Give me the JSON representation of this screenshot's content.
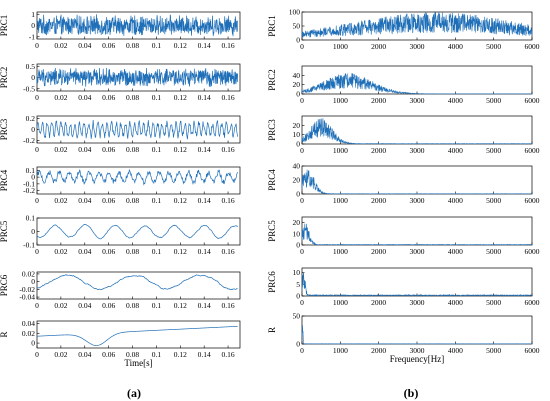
{
  "figure": {
    "panel_labels": [
      "(a)",
      "(b)"
    ],
    "line_color": "#1f6fb8"
  },
  "chart_data": [
    {
      "type": "line",
      "panel": "(a)",
      "xlabel": "Time[s]",
      "xlim": [
        0,
        0.17
      ],
      "xticks": [
        "0",
        "0.02",
        "0.04",
        "0.06",
        "0.08",
        "0.1",
        "0.12",
        "0.14",
        "0.16"
      ],
      "grid": false,
      "series": [
        {
          "name": "PRC1",
          "ylim": [
            -1.2,
            1.2
          ],
          "yticks": [
            "-1",
            "0",
            "1"
          ],
          "amplitude": 1.0,
          "tone": "noise"
        },
        {
          "name": "PRC2",
          "ylim": [
            -0.6,
            0.6
          ],
          "yticks": [
            "-0.5",
            "0",
            "0.5"
          ],
          "amplitude": 0.45,
          "tone": "noise"
        },
        {
          "name": "PRC3",
          "ylim": [
            -0.25,
            0.25
          ],
          "yticks": [
            "-0.2",
            "0",
            "0.2"
          ],
          "amplitude": 0.2,
          "tone": "oscillation"
        },
        {
          "name": "PRC4",
          "ylim": [
            -0.25,
            0.15
          ],
          "yticks": [
            "-0.2",
            "-0.1",
            "0",
            "0.1"
          ],
          "amplitude": 0.12,
          "tone": "oscillation"
        },
        {
          "name": "PRC5",
          "ylim": [
            -0.1,
            0.1
          ],
          "yticks": [
            "-0.1",
            "0",
            "0.1"
          ],
          "amplitude": 0.05,
          "tone": "slow"
        },
        {
          "name": "PRC6",
          "ylim": [
            -0.045,
            0.025
          ],
          "yticks": [
            "-0.04",
            "-0.02",
            "0",
            "0.02"
          ],
          "amplitude": 0.02,
          "tone": "slow"
        },
        {
          "name": "R",
          "ylim": [
            -0.01,
            0.045
          ],
          "yticks": [
            "0",
            "0.02",
            "0.04"
          ],
          "amplitude": 0.03,
          "tone": "trend"
        }
      ]
    },
    {
      "type": "line",
      "panel": "(b)",
      "xlabel": "Frequency[Hz]",
      "xlim": [
        0,
        6000
      ],
      "xticks": [
        "0",
        "1000",
        "2000",
        "3000",
        "4000",
        "5000",
        "6000"
      ],
      "grid": false,
      "series": [
        {
          "name": "PRC1",
          "ylim": [
            0,
            100
          ],
          "yticks": [
            "0",
            "50",
            "100"
          ],
          "peak_hz": 3500,
          "peak_value": 90,
          "spread_hz": 3000
        },
        {
          "name": "PRC2",
          "ylim": [
            0,
            60
          ],
          "yticks": [
            "0",
            "20",
            "40"
          ],
          "peak_hz": 1200,
          "peak_value": 45,
          "spread_hz": 900
        },
        {
          "name": "PRC3",
          "ylim": [
            0,
            30
          ],
          "yticks": [
            "0",
            "10",
            "20"
          ],
          "peak_hz": 500,
          "peak_value": 28,
          "spread_hz": 400
        },
        {
          "name": "PRC4",
          "ylim": [
            0,
            40
          ],
          "yticks": [
            "0",
            "20",
            "40"
          ],
          "peak_hz": 150,
          "peak_value": 35,
          "spread_hz": 250
        },
        {
          "name": "PRC5",
          "ylim": [
            0,
            25
          ],
          "yticks": [
            "0",
            "10",
            "20"
          ],
          "peak_hz": 80,
          "peak_value": 20,
          "spread_hz": 150
        },
        {
          "name": "PRC6",
          "ylim": [
            0,
            12
          ],
          "yticks": [
            "0",
            "5",
            "10"
          ],
          "peak_hz": 40,
          "peak_value": 11,
          "spread_hz": 60
        },
        {
          "name": "R",
          "ylim": [
            0,
            50
          ],
          "yticks": [
            "0",
            "50"
          ],
          "peak_hz": 10,
          "peak_value": 48,
          "spread_hz": 20
        }
      ]
    }
  ]
}
